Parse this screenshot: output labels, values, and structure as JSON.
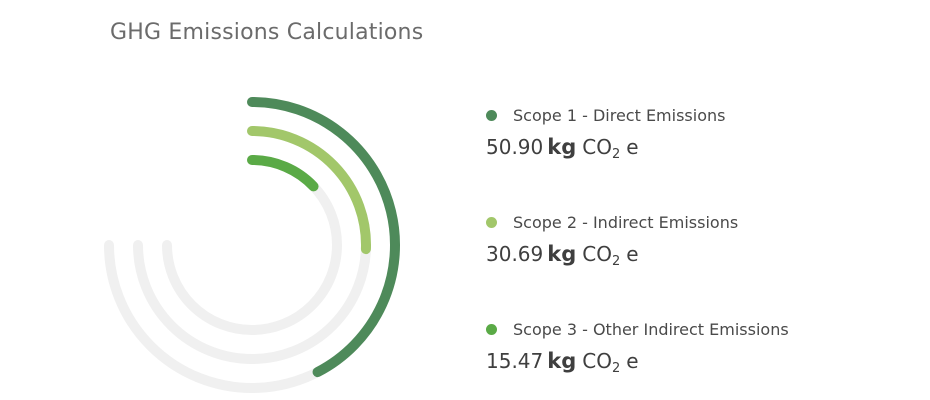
{
  "page": {
    "title": "GHG Emissions Calculations"
  },
  "chart_data": {
    "type": "radial-bar",
    "scale_max": 90,
    "series": [
      {
        "name": "Scope 1 - Direct Emissions",
        "value": 50.9,
        "value_text": "50.90",
        "unit": "kg",
        "gas": "CO",
        "subscript": "2",
        "suffix": "e",
        "color": "#4e8a5a"
      },
      {
        "name": "Scope 2 - Indirect Emissions",
        "value": 30.69,
        "value_text": "30.69",
        "unit": "kg",
        "gas": "CO",
        "subscript": "2",
        "suffix": "e",
        "color": "#a2c76a"
      },
      {
        "name": "Scope 3 - Other Indirect Emissions",
        "value": 15.47,
        "value_text": "15.47",
        "unit": "kg",
        "gas": "CO",
        "subscript": "2",
        "suffix": "e",
        "color": "#5aaa46"
      }
    ],
    "track_color": "#f0f0f0"
  }
}
